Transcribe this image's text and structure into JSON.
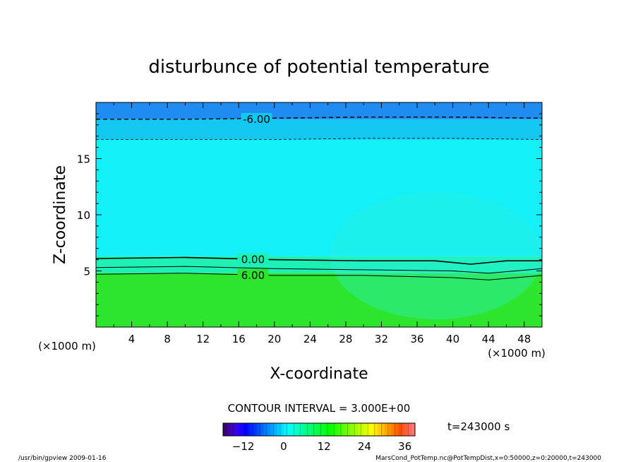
{
  "chart_data": {
    "type": "heatmap",
    "title": "disturbunce of potential temperature",
    "xlabel": "X-coordinate",
    "ylabel": "Z-coordinate",
    "x_unit": "(×1000 m)",
    "xlim": [
      0,
      50
    ],
    "ylim": [
      0,
      20
    ],
    "x_ticks": [
      4,
      8,
      12,
      16,
      20,
      24,
      28,
      32,
      36,
      40,
      44,
      48
    ],
    "y_ticks": [
      5,
      10,
      15
    ],
    "grid": false,
    "contour_interval_text": "CONTOUR INTERVAL = 3.000E+00",
    "time_label": "t=243000 s",
    "colorbar": {
      "range": [
        -18,
        39
      ],
      "ticks": [
        -12,
        0,
        12,
        24,
        36
      ]
    },
    "fill_bands": [
      {
        "z_from": 18.5,
        "z_to": 20.0,
        "value": -7.5,
        "color": "#1f8cf2"
      },
      {
        "z_from": 16.7,
        "z_to": 18.5,
        "value": -4.5,
        "color": "#12c8f0"
      },
      {
        "z_from": 6.3,
        "z_to": 16.7,
        "value": -1.5,
        "color": "#14f0f8"
      },
      {
        "z_from": 4.8,
        "z_to": 6.3,
        "value": 1.5,
        "color": "#1cf0b4"
      },
      {
        "z_from": 0.0,
        "z_to": 4.8,
        "value": 4.5,
        "color": "#2de52d"
      }
    ],
    "contours": [
      {
        "level": -6.0,
        "label": "-6.00",
        "style": "dashed",
        "x": [
          0,
          10,
          20,
          30,
          40,
          50
        ],
        "z": [
          18.5,
          18.5,
          18.6,
          18.7,
          18.7,
          18.6
        ]
      },
      {
        "level": -3.0,
        "label": "",
        "style": "dashed",
        "x": [
          0,
          10,
          20,
          30,
          40,
          50
        ],
        "z": [
          16.7,
          16.7,
          16.7,
          16.8,
          16.8,
          16.7
        ]
      },
      {
        "level": 0.0,
        "label": "0.00",
        "style": "solid",
        "x": [
          0,
          10,
          20,
          30,
          38,
          42,
          46,
          50
        ],
        "z": [
          6.1,
          6.2,
          6.0,
          5.9,
          5.9,
          5.6,
          5.9,
          5.9
        ]
      },
      {
        "level": 3.0,
        "label": "",
        "style": "solid",
        "x": [
          0,
          10,
          20,
          30,
          40,
          44,
          50
        ],
        "z": [
          5.3,
          5.4,
          5.2,
          5.1,
          5.0,
          4.8,
          5.2
        ]
      },
      {
        "level": 6.0,
        "label": "6.00",
        "style": "solid",
        "x": [
          0,
          10,
          20,
          30,
          40,
          44,
          50
        ],
        "z": [
          4.7,
          4.8,
          4.6,
          4.6,
          4.4,
          4.2,
          4.6
        ]
      }
    ]
  },
  "footer": {
    "left": "/usr/bin/gpview   2009-01-16",
    "right": "MarsCond_PotTemp.nc@PotTempDist,x=0:50000,z=0:20000,t=243000"
  }
}
